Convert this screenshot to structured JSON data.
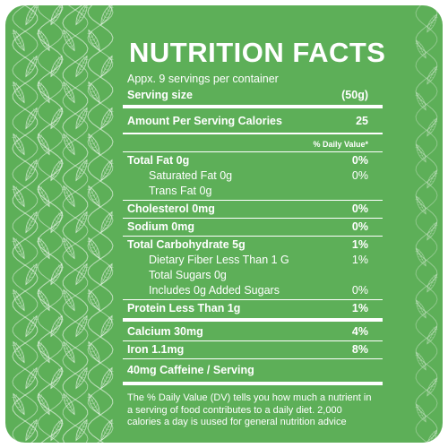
{
  "colors": {
    "background": "#5daf58",
    "text": "#ffffff"
  },
  "title": "NUTRITION FACTS",
  "servings_per_container": "Appx. 9 servings per container",
  "serving_size": {
    "label": "Serving size",
    "value": "(50g)"
  },
  "calories": {
    "label": "Amount Per Serving Calories",
    "value": "25"
  },
  "daily_value_header": "% Daily Value*",
  "nutrients": [
    {
      "label": "Total Fat 0g",
      "value": "0%"
    },
    {
      "label": "Saturated Fat 0g",
      "value": "0%"
    },
    {
      "label": "Trans Fat 0g",
      "value": ""
    },
    {
      "label": "Cholesterol 0mg",
      "value": "0%"
    },
    {
      "label": "Sodium 0mg",
      "value": "0%"
    },
    {
      "label": "Total Carbohydrate 5g",
      "value": "1%"
    },
    {
      "label": "Dietary Fiber Less Than 1 G",
      "value": "1%"
    },
    {
      "label": "Total Sugars 0g",
      "value": ""
    },
    {
      "label": "Includes 0g Added Sugars",
      "value": "0%"
    },
    {
      "label": "Protein Less Than 1g",
      "value": "1%"
    },
    {
      "label": "Calcium 30mg",
      "value": "4%"
    },
    {
      "label": "Iron 1.1mg",
      "value": "8%"
    }
  ],
  "caffeine": "40mg Caffeine / Serving",
  "footnote": "The % Daily Value (DV) tells you how much a nutrient in a serving of food contributes to a daily diet. 2,000 calories a day is uused for general nutrition advice",
  "decoration": "leaf-vine-pattern"
}
